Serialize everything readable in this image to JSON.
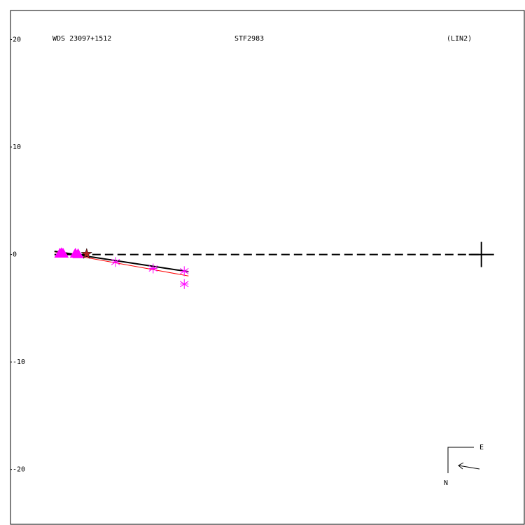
{
  "chart_data": {
    "type": "scatter",
    "title": "WDS 23097+1512",
    "subtitle": "STF2983",
    "annotation": "(LIN2)",
    "compass": {
      "east": "E",
      "north": "N"
    },
    "xlim": [
      -43.9,
      4.0
    ],
    "ylim": [
      -25.1,
      22.7
    ],
    "yticks": [
      20,
      10,
      0,
      -10,
      -20
    ],
    "series": [
      {
        "marker": "triangle",
        "color": "#ff00ff",
        "x": [
          -39.3,
          -39.15,
          -39.0,
          -37.85,
          -37.6
        ],
        "values": [
          0.1,
          0.15,
          0.1,
          0.1,
          0.05
        ]
      },
      {
        "marker": "star",
        "color": "#b22222",
        "x": [
          -36.8
        ],
        "values": [
          0.05
        ]
      },
      {
        "marker": "asterisk",
        "color": "#ff00ff",
        "x": [
          -34.1,
          -30.6,
          -27.7,
          -27.7
        ],
        "values": [
          -0.7,
          -1.3,
          -1.55,
          -2.75
        ]
      }
    ],
    "lines": [
      {
        "color": "#ff0000",
        "width": 1,
        "dash": false,
        "x": [
          -39.8,
          -27.3
        ],
        "values": [
          0.25,
          -2.0
        ]
      },
      {
        "color": "#000000",
        "width": 2,
        "dash": false,
        "x": [
          -39.8,
          -27.3
        ],
        "values": [
          0.3,
          -1.6
        ]
      },
      {
        "color": "#000000",
        "width": 2,
        "dash": true,
        "x": [
          -39.8,
          0
        ],
        "values": [
          0,
          0
        ]
      }
    ],
    "primary": {
      "x": 0,
      "y": 0
    }
  }
}
